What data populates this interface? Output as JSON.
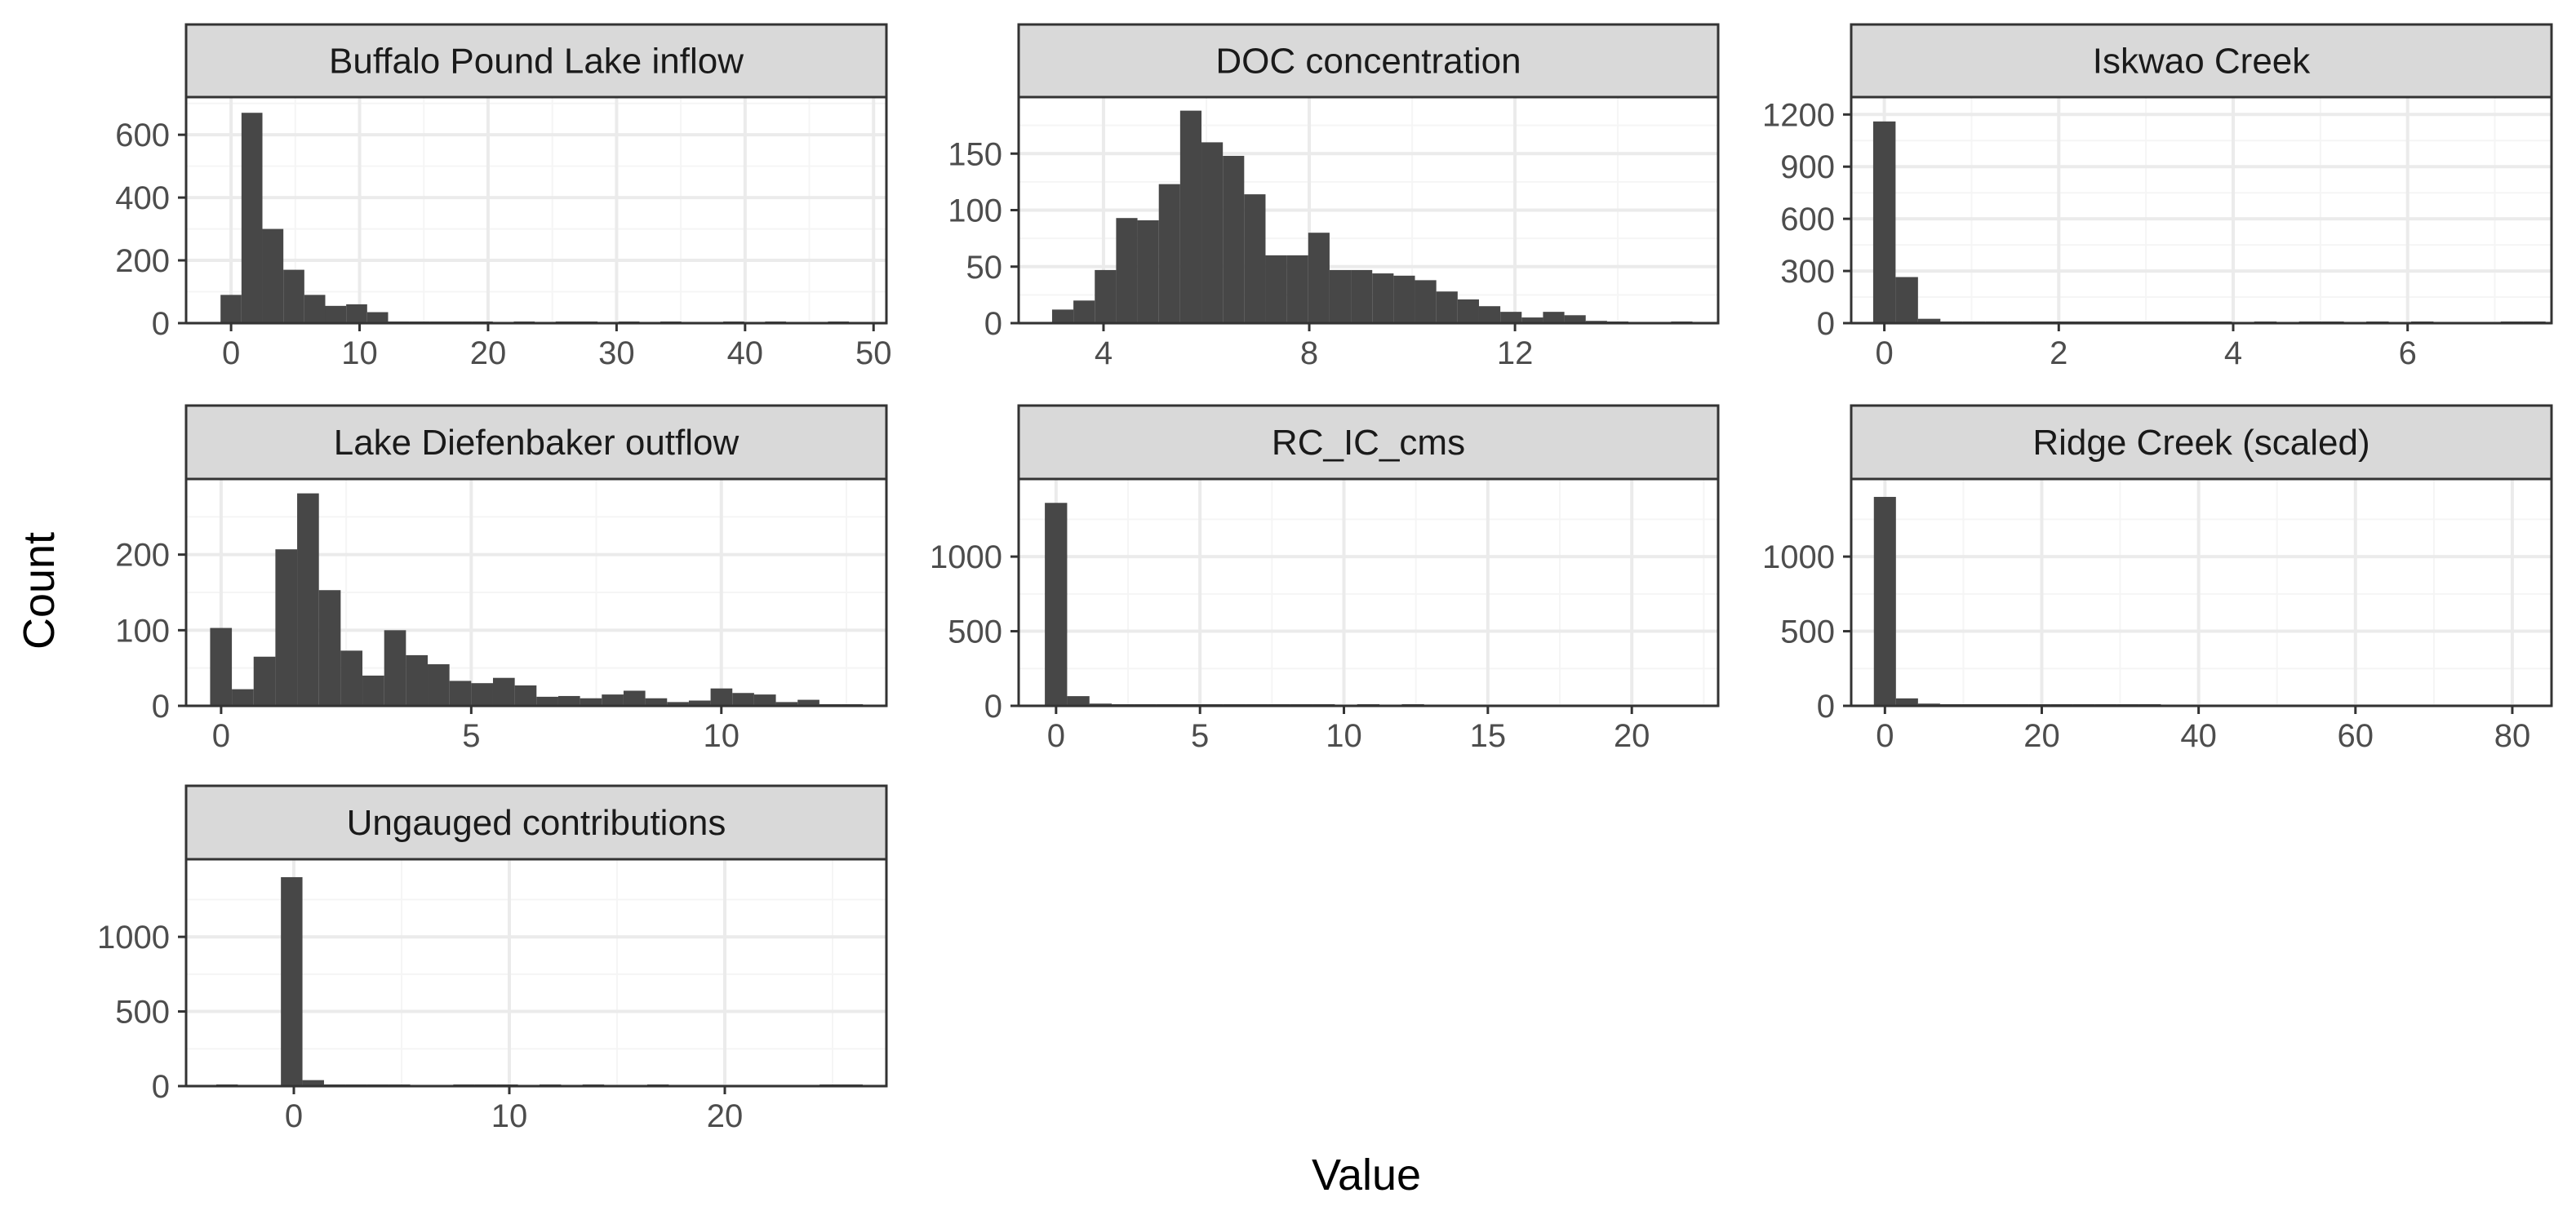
{
  "figure": {
    "xlabel": "Value",
    "ylabel": "Count",
    "colors": {
      "bar": "#474747",
      "strip_fill": "#d9d9d9",
      "border": "#333333",
      "grid_major": "#ebebeb",
      "grid_minor": "#f5f5f5",
      "tick_text": "#4d4d4d"
    }
  },
  "chart_data": [
    {
      "type": "bar",
      "title": "Buffalo Pound Lake inflow",
      "xlim": [
        -3.5,
        51
      ],
      "ylim": [
        0,
        720
      ],
      "x_ticks": [
        0,
        10,
        20,
        30,
        40,
        50
      ],
      "y_ticks": [
        0,
        200,
        400,
        600
      ],
      "bin_width": 1.63,
      "bin_start": -0.82,
      "values": [
        90,
        670,
        300,
        170,
        90,
        55,
        60,
        35,
        5,
        2,
        1,
        1,
        1,
        0,
        1,
        0,
        1,
        3,
        0,
        1,
        0,
        1,
        0,
        0,
        1,
        0,
        1,
        0,
        0,
        1
      ]
    },
    {
      "type": "bar",
      "title": "DOC concentration",
      "xlim": [
        2.35,
        15.95
      ],
      "ylim": [
        0,
        200
      ],
      "x_ticks": [
        4,
        8,
        12
      ],
      "y_ticks": [
        0,
        50,
        100,
        150
      ],
      "bin_width": 0.415,
      "bin_start": 3.0,
      "values": [
        12,
        20,
        47,
        93,
        91,
        123,
        188,
        160,
        148,
        114,
        60,
        60,
        80,
        47,
        47,
        44,
        42,
        38,
        28,
        21,
        15,
        10,
        5,
        10,
        7,
        2,
        1,
        0,
        0,
        1
      ]
    },
    {
      "type": "bar",
      "title": "Iskwao Creek",
      "xlim": [
        -0.38,
        7.65
      ],
      "ylim": [
        0,
        1300
      ],
      "x_ticks": [
        0,
        2,
        4,
        6
      ],
      "y_ticks": [
        0,
        300,
        600,
        900,
        1200
      ],
      "bin_width": 0.257,
      "bin_start": -0.128,
      "values": [
        1160,
        265,
        25,
        7,
        3,
        2,
        2,
        1,
        1,
        3,
        3,
        2,
        1,
        1,
        1,
        1,
        0,
        1,
        0,
        1,
        1,
        0,
        1,
        0,
        1,
        0,
        0,
        0,
        1,
        1
      ]
    },
    {
      "type": "bar",
      "title": "Lake Diefenbaker outflow",
      "xlim": [
        -0.7,
        13.3
      ],
      "ylim": [
        0,
        300
      ],
      "x_ticks": [
        0,
        5,
        10
      ],
      "y_ticks": [
        0,
        100,
        200
      ],
      "bin_width": 0.435,
      "bin_start": -0.22,
      "values": [
        103,
        22,
        65,
        207,
        281,
        153,
        73,
        40,
        100,
        67,
        55,
        33,
        30,
        37,
        27,
        12,
        13,
        10,
        15,
        20,
        10,
        5,
        7,
        23,
        17,
        15,
        5,
        8,
        2,
        2
      ]
    },
    {
      "type": "bar",
      "title": "RC_IC_cms",
      "xlim": [
        -1.3,
        23.0
      ],
      "ylim": [
        0,
        1520
      ],
      "x_ticks": [
        0,
        5,
        10,
        15,
        20
      ],
      "y_ticks": [
        0,
        500,
        1000
      ],
      "bin_width": 0.775,
      "bin_start": -0.39,
      "values": [
        1360,
        65,
        15,
        7,
        5,
        3,
        2,
        1,
        3,
        1,
        1,
        1,
        2,
        0,
        1,
        0,
        1,
        0,
        0,
        0,
        0,
        0,
        0,
        0,
        0,
        0,
        0,
        0,
        0,
        0
      ]
    },
    {
      "type": "bar",
      "title": "Ridge Creek (scaled)",
      "xlim": [
        -4.3,
        85.0
      ],
      "ylim": [
        0,
        1520
      ],
      "x_ticks": [
        0,
        20,
        40,
        60,
        80
      ],
      "y_ticks": [
        0,
        500,
        1000
      ],
      "bin_width": 2.815,
      "bin_start": -1.41,
      "values": [
        1400,
        50,
        15,
        7,
        5,
        3,
        2,
        1,
        1,
        1,
        1,
        1,
        1,
        0,
        0,
        0,
        0,
        0,
        0,
        0,
        0,
        0,
        0,
        0,
        0,
        0,
        0,
        0,
        0,
        0
      ]
    },
    {
      "type": "bar",
      "title": "Ungauged contributions",
      "xlim": [
        -5.0,
        27.5
      ],
      "ylim": [
        0,
        1520
      ],
      "x_ticks": [
        0,
        10,
        20
      ],
      "y_ticks": [
        0,
        500,
        1000
      ],
      "bin_width": 1.0,
      "bin_start": -3.6,
      "values": [
        1,
        0,
        0,
        1400,
        40,
        8,
        5,
        4,
        2,
        0,
        0,
        1,
        1,
        1,
        0,
        1,
        0,
        1,
        0,
        0,
        1,
        0,
        0,
        0,
        0,
        0,
        0,
        0,
        1,
        1
      ]
    }
  ]
}
